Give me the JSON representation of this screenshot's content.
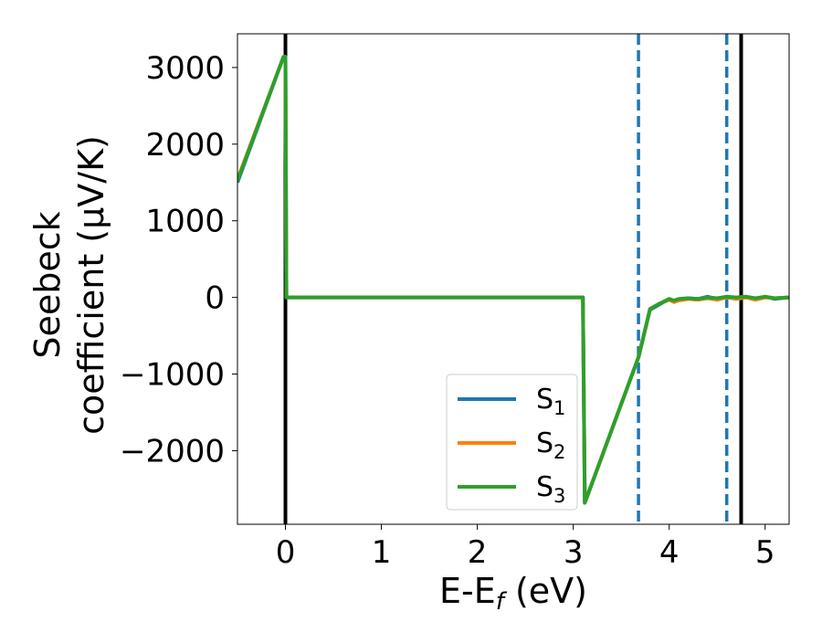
{
  "chart_data": {
    "type": "line",
    "xlabel": "E-E",
    "xlabel_sub": "f",
    "xlabel_unit": " (eV)",
    "ylabel_line1": "Seebeck",
    "ylabel_line2": "coefficient  (μV/K)",
    "xlim": [
      -0.5,
      5.25
    ],
    "ylim": [
      -2960,
      3440
    ],
    "xticks": [
      0,
      1,
      2,
      3,
      4,
      5
    ],
    "xtick_labels": [
      "0",
      "1",
      "2",
      "3",
      "4",
      "5"
    ],
    "yticks": [
      -2000,
      -1000,
      0,
      1000,
      2000,
      3000
    ],
    "ytick_labels": [
      "−2000",
      "−1000",
      "0",
      "1000",
      "2000",
      "3000"
    ],
    "grid": false,
    "legend_position": "lower-center-right",
    "vlines": [
      {
        "x": 0.0,
        "style": "solid",
        "color": "#000000"
      },
      {
        "x": 4.75,
        "style": "solid",
        "color": "#000000"
      },
      {
        "x": 3.68,
        "style": "dashed",
        "color": "#1f77b4"
      },
      {
        "x": 4.6,
        "style": "dashed",
        "color": "#1f77b4"
      }
    ],
    "series": [
      {
        "name": "S",
        "sub": "1",
        "color": "#1f77b4",
        "x": [
          -0.5,
          -0.02,
          0.0,
          0.01,
          3.1,
          3.12,
          3.68,
          3.8,
          3.9,
          4.0,
          4.05,
          4.1,
          4.2,
          4.3,
          4.4,
          4.5,
          4.6,
          4.7,
          4.8,
          4.9,
          5.0,
          5.1,
          5.25
        ],
        "y": [
          1500,
          3140,
          3140,
          0,
          0,
          -2680,
          -780,
          -160,
          -90,
          -20,
          -50,
          -30,
          -10,
          -20,
          10,
          -20,
          10,
          -10,
          10,
          -20,
          10,
          -20,
          0
        ]
      },
      {
        "name": "S",
        "sub": "2",
        "color": "#ff7f0e",
        "x": [
          -0.5,
          -0.02,
          0.0,
          0.01,
          3.1,
          3.12,
          3.68,
          3.8,
          3.9,
          4.0,
          4.05,
          4.1,
          4.2,
          4.3,
          4.4,
          4.5,
          4.6,
          4.7,
          4.8,
          4.9,
          5.0,
          5.1,
          5.25
        ],
        "y": [
          1540,
          3140,
          3140,
          0,
          0,
          -2680,
          -780,
          -150,
          -80,
          -30,
          -60,
          -40,
          -20,
          -30,
          -10,
          -30,
          0,
          -20,
          0,
          -30,
          0,
          -10,
          0
        ]
      },
      {
        "name": "S",
        "sub": "3",
        "color": "#2ca02c",
        "x": [
          -0.5,
          -0.02,
          0.0,
          0.01,
          3.1,
          3.12,
          3.68,
          3.8,
          3.9,
          4.0,
          4.05,
          4.1,
          4.2,
          4.3,
          4.4,
          4.5,
          4.6,
          4.7,
          4.8,
          4.9,
          5.0,
          5.1,
          5.25
        ],
        "y": [
          1520,
          3140,
          3140,
          0,
          0,
          -2680,
          -780,
          -150,
          -80,
          -20,
          -40,
          -20,
          -10,
          -20,
          0,
          -10,
          10,
          0,
          10,
          -10,
          10,
          -10,
          0
        ]
      }
    ]
  }
}
